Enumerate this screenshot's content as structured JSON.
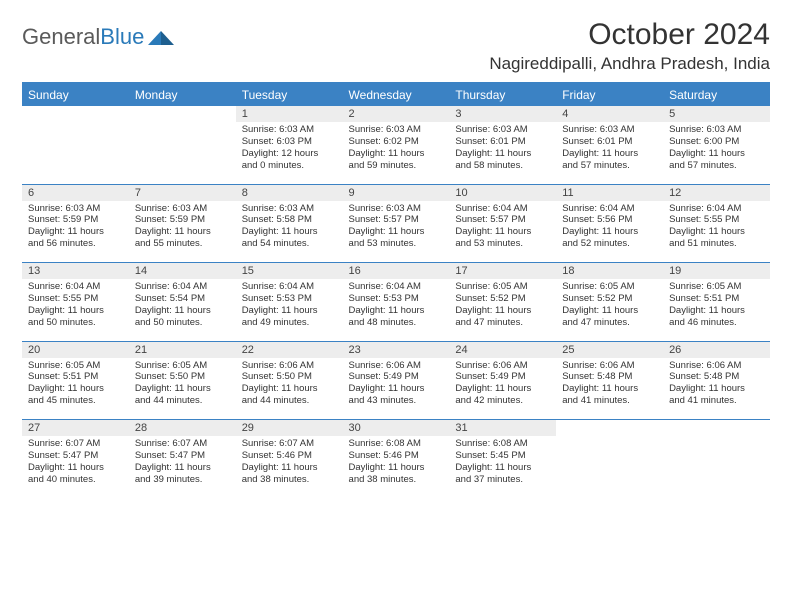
{
  "logo": {
    "text1": "General",
    "text2": "Blue"
  },
  "title": "October 2024",
  "location": "Nagireddipalli, Andhra Pradesh, India",
  "colors": {
    "header_bg": "#3b82c4",
    "header_text": "#ffffff",
    "daynum_bg": "#ededed",
    "divider": "#3b82c4",
    "logo_gray": "#5a5a5a",
    "logo_blue": "#2a7ab9"
  },
  "daynames": [
    "Sunday",
    "Monday",
    "Tuesday",
    "Wednesday",
    "Thursday",
    "Friday",
    "Saturday"
  ],
  "weeks": [
    {
      "nums": [
        "",
        "",
        "1",
        "2",
        "3",
        "4",
        "5"
      ],
      "cells": [
        {
          "l1": "",
          "l2": "",
          "l3": "",
          "l4": ""
        },
        {
          "l1": "",
          "l2": "",
          "l3": "",
          "l4": ""
        },
        {
          "l1": "Sunrise: 6:03 AM",
          "l2": "Sunset: 6:03 PM",
          "l3": "Daylight: 12 hours",
          "l4": "and 0 minutes."
        },
        {
          "l1": "Sunrise: 6:03 AM",
          "l2": "Sunset: 6:02 PM",
          "l3": "Daylight: 11 hours",
          "l4": "and 59 minutes."
        },
        {
          "l1": "Sunrise: 6:03 AM",
          "l2": "Sunset: 6:01 PM",
          "l3": "Daylight: 11 hours",
          "l4": "and 58 minutes."
        },
        {
          "l1": "Sunrise: 6:03 AM",
          "l2": "Sunset: 6:01 PM",
          "l3": "Daylight: 11 hours",
          "l4": "and 57 minutes."
        },
        {
          "l1": "Sunrise: 6:03 AM",
          "l2": "Sunset: 6:00 PM",
          "l3": "Daylight: 11 hours",
          "l4": "and 57 minutes."
        }
      ]
    },
    {
      "nums": [
        "6",
        "7",
        "8",
        "9",
        "10",
        "11",
        "12"
      ],
      "cells": [
        {
          "l1": "Sunrise: 6:03 AM",
          "l2": "Sunset: 5:59 PM",
          "l3": "Daylight: 11 hours",
          "l4": "and 56 minutes."
        },
        {
          "l1": "Sunrise: 6:03 AM",
          "l2": "Sunset: 5:59 PM",
          "l3": "Daylight: 11 hours",
          "l4": "and 55 minutes."
        },
        {
          "l1": "Sunrise: 6:03 AM",
          "l2": "Sunset: 5:58 PM",
          "l3": "Daylight: 11 hours",
          "l4": "and 54 minutes."
        },
        {
          "l1": "Sunrise: 6:03 AM",
          "l2": "Sunset: 5:57 PM",
          "l3": "Daylight: 11 hours",
          "l4": "and 53 minutes."
        },
        {
          "l1": "Sunrise: 6:04 AM",
          "l2": "Sunset: 5:57 PM",
          "l3": "Daylight: 11 hours",
          "l4": "and 53 minutes."
        },
        {
          "l1": "Sunrise: 6:04 AM",
          "l2": "Sunset: 5:56 PM",
          "l3": "Daylight: 11 hours",
          "l4": "and 52 minutes."
        },
        {
          "l1": "Sunrise: 6:04 AM",
          "l2": "Sunset: 5:55 PM",
          "l3": "Daylight: 11 hours",
          "l4": "and 51 minutes."
        }
      ]
    },
    {
      "nums": [
        "13",
        "14",
        "15",
        "16",
        "17",
        "18",
        "19"
      ],
      "cells": [
        {
          "l1": "Sunrise: 6:04 AM",
          "l2": "Sunset: 5:55 PM",
          "l3": "Daylight: 11 hours",
          "l4": "and 50 minutes."
        },
        {
          "l1": "Sunrise: 6:04 AM",
          "l2": "Sunset: 5:54 PM",
          "l3": "Daylight: 11 hours",
          "l4": "and 50 minutes."
        },
        {
          "l1": "Sunrise: 6:04 AM",
          "l2": "Sunset: 5:53 PM",
          "l3": "Daylight: 11 hours",
          "l4": "and 49 minutes."
        },
        {
          "l1": "Sunrise: 6:04 AM",
          "l2": "Sunset: 5:53 PM",
          "l3": "Daylight: 11 hours",
          "l4": "and 48 minutes."
        },
        {
          "l1": "Sunrise: 6:05 AM",
          "l2": "Sunset: 5:52 PM",
          "l3": "Daylight: 11 hours",
          "l4": "and 47 minutes."
        },
        {
          "l1": "Sunrise: 6:05 AM",
          "l2": "Sunset: 5:52 PM",
          "l3": "Daylight: 11 hours",
          "l4": "and 47 minutes."
        },
        {
          "l1": "Sunrise: 6:05 AM",
          "l2": "Sunset: 5:51 PM",
          "l3": "Daylight: 11 hours",
          "l4": "and 46 minutes."
        }
      ]
    },
    {
      "nums": [
        "20",
        "21",
        "22",
        "23",
        "24",
        "25",
        "26"
      ],
      "cells": [
        {
          "l1": "Sunrise: 6:05 AM",
          "l2": "Sunset: 5:51 PM",
          "l3": "Daylight: 11 hours",
          "l4": "and 45 minutes."
        },
        {
          "l1": "Sunrise: 6:05 AM",
          "l2": "Sunset: 5:50 PM",
          "l3": "Daylight: 11 hours",
          "l4": "and 44 minutes."
        },
        {
          "l1": "Sunrise: 6:06 AM",
          "l2": "Sunset: 5:50 PM",
          "l3": "Daylight: 11 hours",
          "l4": "and 44 minutes."
        },
        {
          "l1": "Sunrise: 6:06 AM",
          "l2": "Sunset: 5:49 PM",
          "l3": "Daylight: 11 hours",
          "l4": "and 43 minutes."
        },
        {
          "l1": "Sunrise: 6:06 AM",
          "l2": "Sunset: 5:49 PM",
          "l3": "Daylight: 11 hours",
          "l4": "and 42 minutes."
        },
        {
          "l1": "Sunrise: 6:06 AM",
          "l2": "Sunset: 5:48 PM",
          "l3": "Daylight: 11 hours",
          "l4": "and 41 minutes."
        },
        {
          "l1": "Sunrise: 6:06 AM",
          "l2": "Sunset: 5:48 PM",
          "l3": "Daylight: 11 hours",
          "l4": "and 41 minutes."
        }
      ]
    },
    {
      "nums": [
        "27",
        "28",
        "29",
        "30",
        "31",
        "",
        ""
      ],
      "cells": [
        {
          "l1": "Sunrise: 6:07 AM",
          "l2": "Sunset: 5:47 PM",
          "l3": "Daylight: 11 hours",
          "l4": "and 40 minutes."
        },
        {
          "l1": "Sunrise: 6:07 AM",
          "l2": "Sunset: 5:47 PM",
          "l3": "Daylight: 11 hours",
          "l4": "and 39 minutes."
        },
        {
          "l1": "Sunrise: 6:07 AM",
          "l2": "Sunset: 5:46 PM",
          "l3": "Daylight: 11 hours",
          "l4": "and 38 minutes."
        },
        {
          "l1": "Sunrise: 6:08 AM",
          "l2": "Sunset: 5:46 PM",
          "l3": "Daylight: 11 hours",
          "l4": "and 38 minutes."
        },
        {
          "l1": "Sunrise: 6:08 AM",
          "l2": "Sunset: 5:45 PM",
          "l3": "Daylight: 11 hours",
          "l4": "and 37 minutes."
        },
        {
          "l1": "",
          "l2": "",
          "l3": "",
          "l4": ""
        },
        {
          "l1": "",
          "l2": "",
          "l3": "",
          "l4": ""
        }
      ]
    }
  ]
}
